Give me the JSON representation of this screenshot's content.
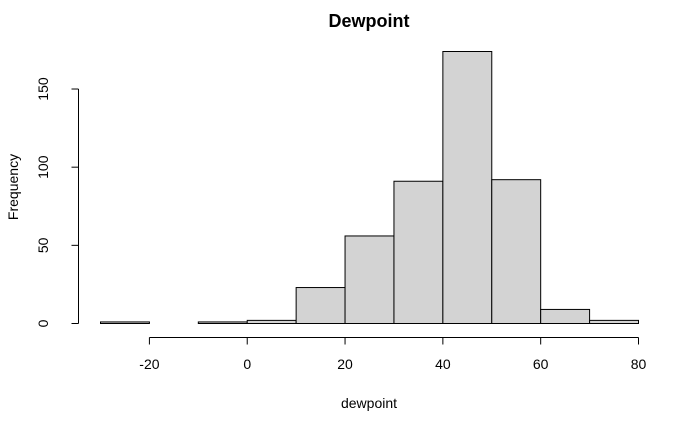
{
  "chart_data": {
    "type": "bar",
    "title": "Dewpoint",
    "xlabel": "dewpoint",
    "ylabel": "Frequency",
    "bins": [
      {
        "from": -30,
        "to": -20,
        "count": 1
      },
      {
        "from": -20,
        "to": -10,
        "count": 0
      },
      {
        "from": -10,
        "to": 0,
        "count": 1
      },
      {
        "from": 0,
        "to": 10,
        "count": 2
      },
      {
        "from": 10,
        "to": 20,
        "count": 23
      },
      {
        "from": 20,
        "to": 30,
        "count": 56
      },
      {
        "from": 30,
        "to": 40,
        "count": 91
      },
      {
        "from": 40,
        "to": 50,
        "count": 174
      },
      {
        "from": 50,
        "to": 60,
        "count": 92
      },
      {
        "from": 60,
        "to": 70,
        "count": 9
      },
      {
        "from": 70,
        "to": 80,
        "count": 2
      }
    ],
    "x_ticks": [
      -20,
      0,
      20,
      40,
      60,
      80
    ],
    "y_ticks": [
      0,
      50,
      100,
      150
    ],
    "xlim": [
      -30,
      80
    ],
    "ylim": [
      0,
      174
    ],
    "bar_color": "#d3d3d3",
    "grid": false
  }
}
